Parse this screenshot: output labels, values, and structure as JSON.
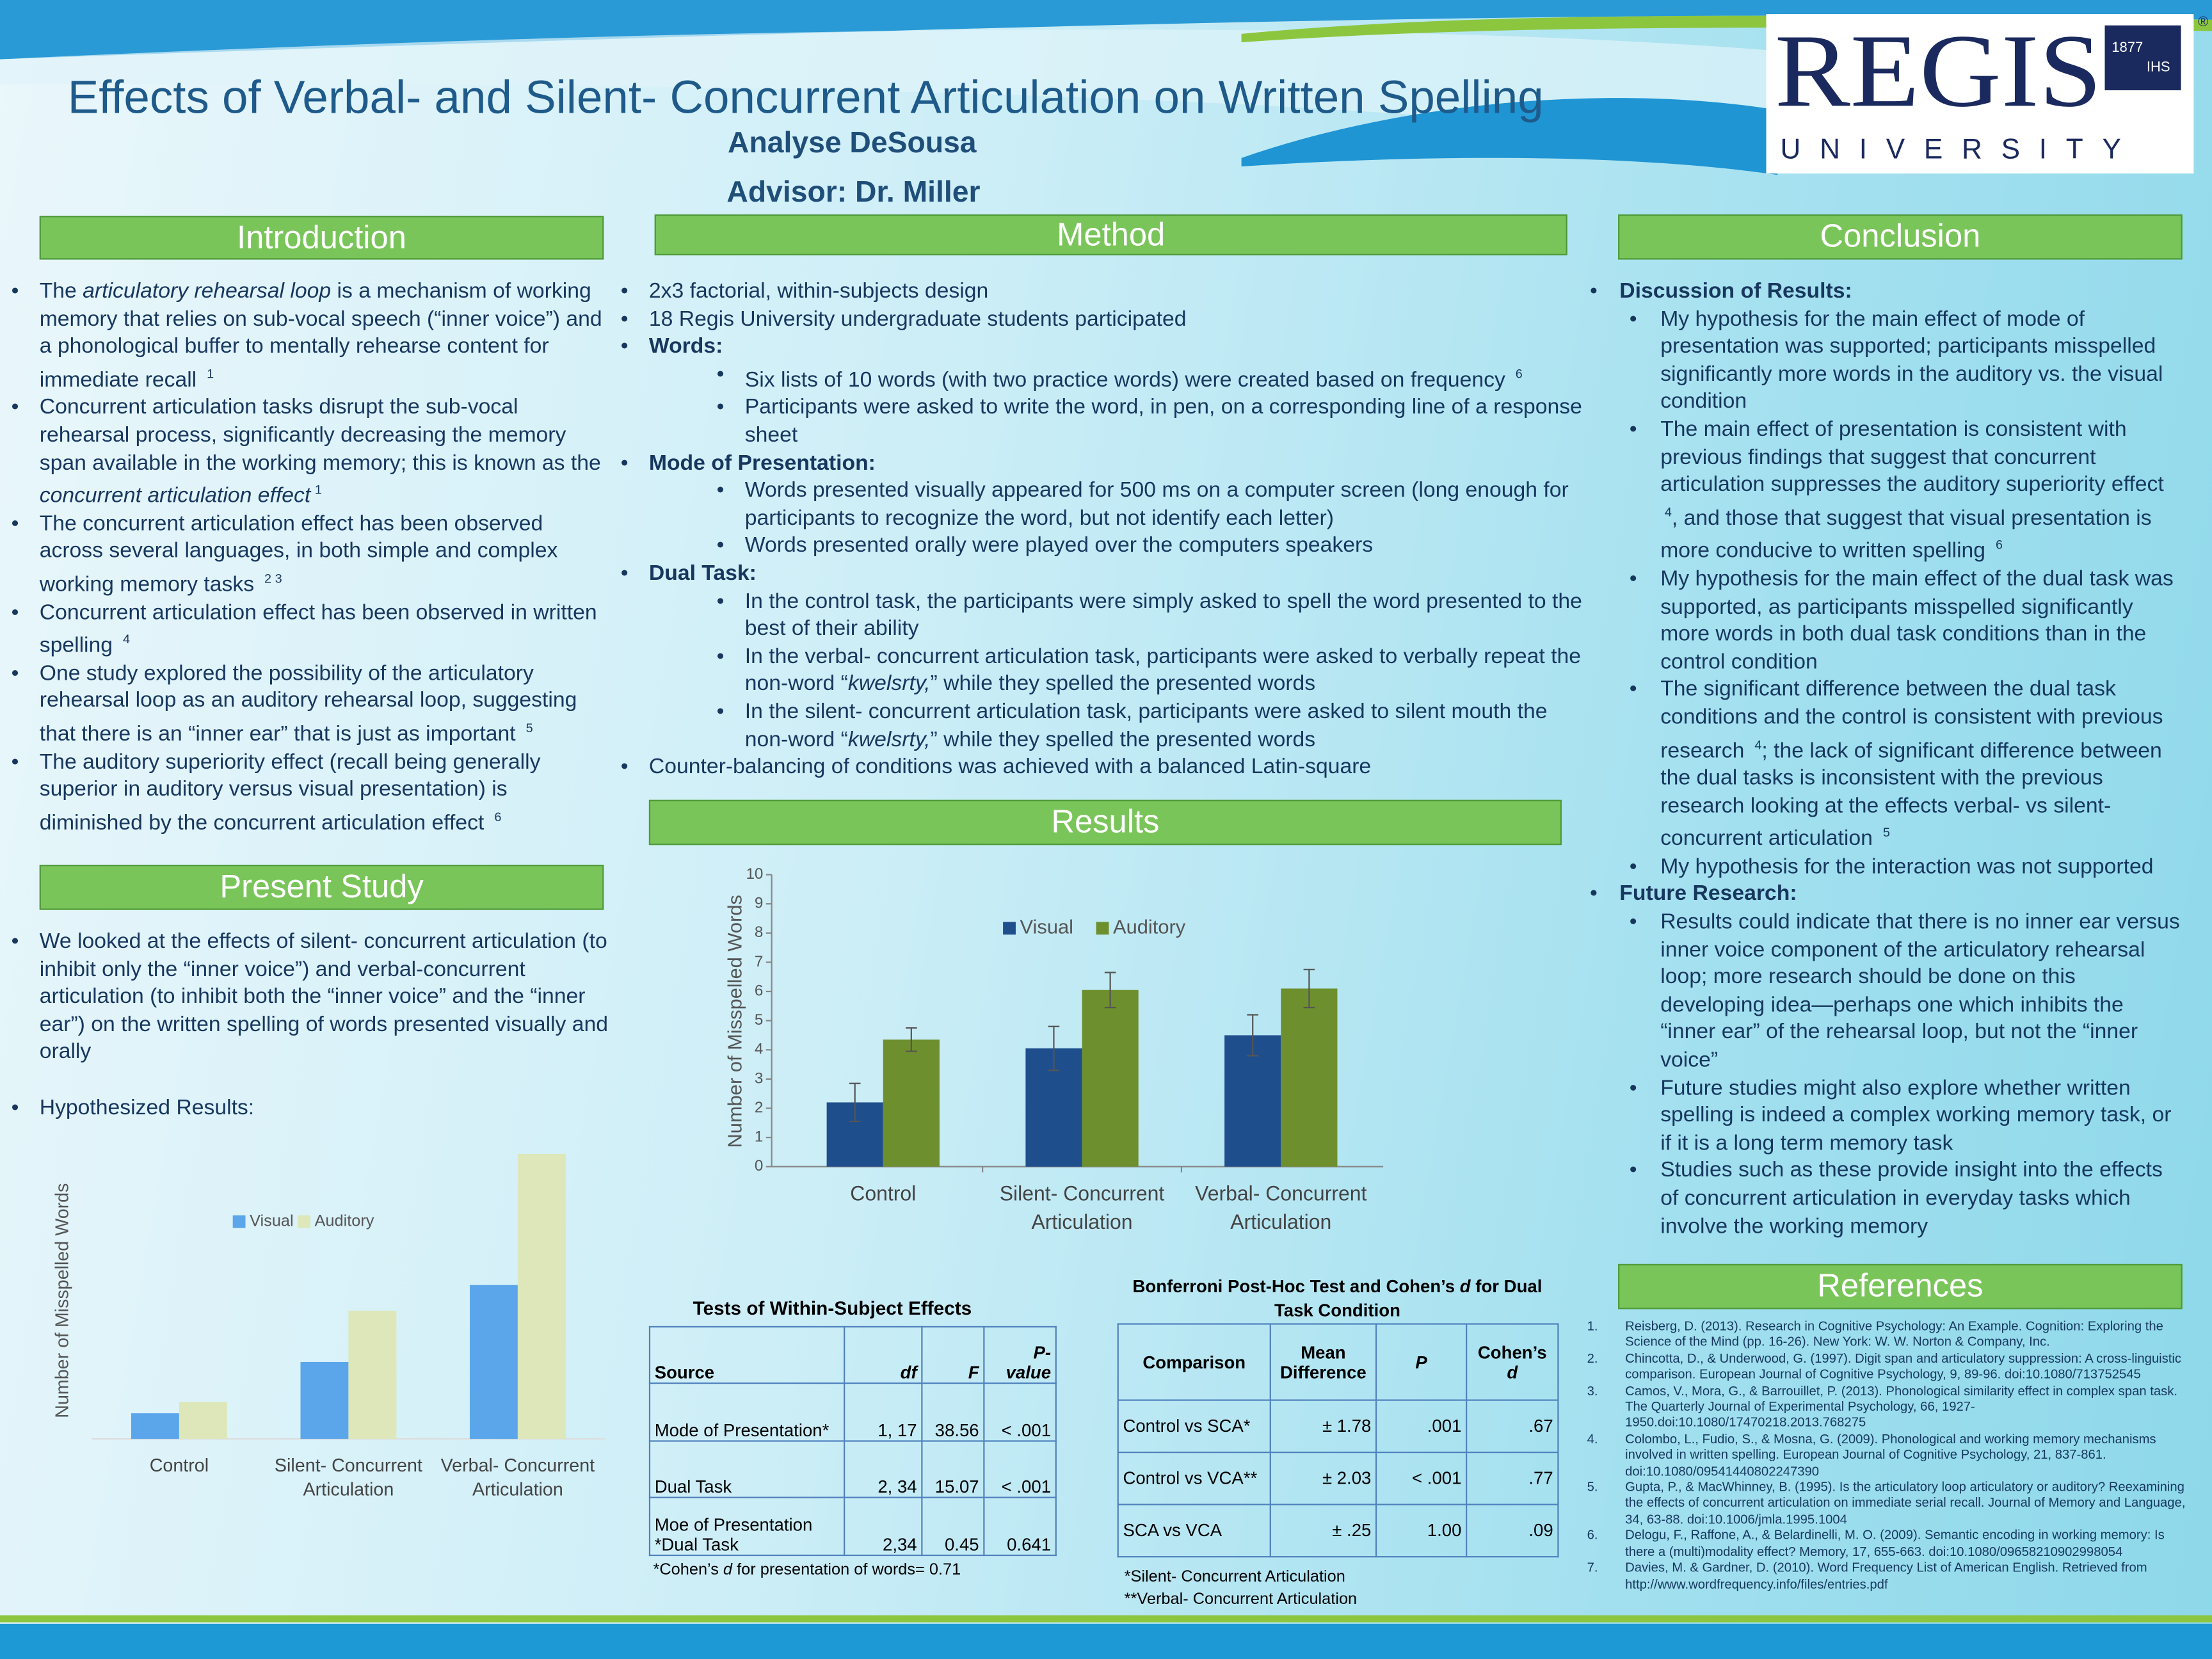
{
  "header": {
    "title": "Effects of Verbal- and Silent- Concurrent Articulation on Written Spelling",
    "author": "Analyse DeSousa",
    "advisor": "Advisor: Dr. Miller"
  },
  "logo": {
    "name": "REGIS",
    "subtitle": "UNIVERSITY",
    "year": "1877",
    "monogram": "IHS",
    "mark": "®"
  },
  "introduction": {
    "heading": "Introduction",
    "items": [
      [
        "The ",
        {
          "i": "articulatory rehearsal loop"
        },
        " is a mechanism of working memory that relies on sub-vocal speech (“inner voice”) and a phonological buffer to mentally rehearse content for immediate recall ",
        {
          "sup": "1"
        }
      ],
      [
        "Concurrent articulation tasks disrupt the sub-vocal rehearsal process, significantly decreasing the memory span available in the working memory; this is known as the ",
        {
          "i": "concurrent articulation effect"
        },
        {
          "sup": "1"
        }
      ],
      [
        "The concurrent articulation effect has been observed across several languages, in both simple and complex working memory tasks ",
        {
          "sup": "2 3"
        }
      ],
      [
        "Concurrent articulation effect has been observed in written spelling ",
        {
          "sup": "4"
        }
      ],
      [
        "One study explored the possibility of the articulatory rehearsal loop as an auditory rehearsal loop, suggesting that there is an “inner ear” that is just as important ",
        {
          "sup": "5"
        }
      ],
      [
        "The auditory superiority effect (recall being generally superior in auditory versus visual presentation) is diminished by the concurrent articulation effect ",
        {
          "sup": "6"
        }
      ]
    ]
  },
  "present_study": {
    "heading": "Present Study",
    "items": [
      "We looked at the effects of silent- concurrent articulation (to inhibit only the “inner voice”) and verbal-concurrent articulation (to inhibit both the “inner voice” and the “inner ear”) on the written spelling of words presented visually and orally",
      "Hypothesized Results:"
    ]
  },
  "method": {
    "heading": "Method",
    "items": [
      "2x3 factorial, within-subjects design",
      "18 Regis University undergraduate students participated",
      {
        "head": "Words:",
        "sub": [
          [
            "Six lists of 10 words (with two practice words) were created based on frequency ",
            {
              "sup": "6"
            }
          ],
          "Participants were asked to write the word, in pen, on a corresponding line of a response sheet"
        ]
      },
      {
        "head": "Mode of Presentation:",
        "sub": [
          "Words presented visually appeared for 500 ms on a computer screen (long enough for participants to recognize the word, but not identify each letter)",
          "Words presented orally were played over the computers speakers"
        ]
      },
      {
        "head": "Dual Task:",
        "sub": [
          "In the control task, the participants were simply asked to spell the word presented to the best of their ability",
          [
            "In the verbal- concurrent articulation task, participants were asked to verbally repeat the non-word “",
            {
              "i": "kwelsrty,"
            },
            "” while they spelled the presented words"
          ],
          [
            "In the silent- concurrent articulation task, participants were asked to silent mouth the non-word “",
            {
              "i": "kwelsrty,"
            },
            "” while they spelled the presented words"
          ]
        ]
      },
      "Counter-balancing of conditions was achieved with a balanced Latin-square"
    ]
  },
  "results": {
    "heading": "Results"
  },
  "conclusion": {
    "heading": "Conclusion",
    "items": [
      {
        "head": "Discussion of Results:",
        "sub": [
          "My hypothesis for the main effect of mode of presentation was supported; participants misspelled significantly more words in the auditory vs. the visual condition",
          [
            "The main effect of presentation is consistent with previous findings that suggest that concurrent articulation suppresses the auditory superiority effect ",
            {
              "sup": "4"
            },
            ", and those that suggest that visual presentation is more conducive to written spelling ",
            {
              "sup": "6"
            }
          ],
          "My hypothesis for the main effect of the dual task was supported, as participants misspelled significantly more words in both dual task conditions than in the control condition",
          [
            "The significant difference between the dual task conditions and the control is consistent with previous research ",
            {
              "sup": "4"
            },
            "; the lack of significant difference between the dual tasks is inconsistent with the previous research looking at the effects verbal- vs silent- concurrent articulation ",
            {
              "sup": "5"
            }
          ],
          "My hypothesis for the interaction was not supported"
        ]
      },
      {
        "head": "Future Research:",
        "sub": [
          "Results could indicate that there is no inner ear versus inner voice component of the articulatory rehearsal loop; more research should be done on this developing idea—perhaps one which inhibits the “inner ear” of the rehearsal loop, but not the “inner voice”",
          "Future studies might also explore whether written spelling is indeed a complex working memory task, or if it is a long term memory task",
          "Studies such as these provide insight into the effects of concurrent articulation in everyday tasks which involve the working memory"
        ]
      }
    ]
  },
  "references": {
    "heading": "References",
    "items": [
      {
        "num": "1.",
        "text": "Reisberg, D. (2013). Research in Cognitive Psychology: An Example. Cognition: Exploring the Science of the Mind (pp. 16-26). New York: W. W. Norton & Company, Inc."
      },
      {
        "num": "2.",
        "text": "Chincotta, D., & Underwood, G. (1997). Digit span and articulatory suppression: A cross-linguistic comparison. European Journal of Cognitive Psychology, 9, 89-96. doi:10.1080/713752545"
      },
      {
        "num": "3.",
        "text": "Camos, V., Mora, G., & Barrouillet, P. (2013). Phonological similarity effect in complex span task. The Quarterly Journal of Experimental Psychology, 66, 1927-1950.doi:10.1080/17470218.2013.768275"
      },
      {
        "num": "4.",
        "text": "Colombo, L., Fudio, S., & Mosna, G. (2009). Phonological and working memory mechanisms involved in written spelling. European Journal of Cognitive Psychology, 21, 837-861. doi:10.1080/09541440802247390"
      },
      {
        "num": "5.",
        "text": "Gupta, P., & MacWhinney, B. (1995). Is the articulatory loop articulatory or auditory? Reexamining the effects of concurrent articulation on immediate serial recall. Journal of Memory and Language, 34, 63-88. doi:10.1006/jmla.1995.1004"
      },
      {
        "num": "6.",
        "text": "Delogu, F., Raffone, A., & Belardinelli, M. O. (2009). Semantic encoding in working memory: Is there a (multi)modality effect? Memory, 17, 655-663. doi:10.1080/09658210902998054"
      },
      {
        "num": "7.",
        "text": "Davies, M. & Gardner, D. (2010). Word Frequency List of American English. Retrieved from http://www.wordfrequency.info/files/entries.pdf"
      }
    ]
  },
  "tables": [
    {
      "title": "Tests of Within-Subject Effects",
      "header": [
        "Source",
        {
          "i": "df"
        },
        {
          "i": "F"
        },
        {
          "i": "P-value"
        }
      ],
      "rows": [
        [
          "Mode of Presentation*",
          "1, 17",
          "38.56",
          "< .001"
        ],
        [
          "Dual Task",
          "2, 34",
          "15.07",
          "< .001"
        ],
        [
          "Moe of Presentation *Dual Task",
          "2,34",
          "0.45",
          "0.641"
        ]
      ],
      "notes": [
        [
          "*Cohen’s ",
          {
            "i": "d"
          },
          " for presentation of words= 0.71"
        ]
      ]
    },
    {
      "title": [
        "Bonferroni Post-Hoc Test and Cohen’s ",
        {
          "i": "d"
        },
        " for Dual Task Condition"
      ],
      "header": [
        "Comparison",
        "Mean Difference",
        {
          "i": "P"
        },
        [
          "Cohen’s ",
          {
            "i": "d"
          }
        ]
      ],
      "rows": [
        [
          "Control vs SCA*",
          "± 1.78",
          ".001",
          ".67"
        ],
        [
          "Control vs VCA**",
          "± 2.03",
          "< .001",
          ".77"
        ],
        [
          "SCA vs VCA",
          "± .25",
          "1.00",
          ".09"
        ]
      ],
      "notes": [
        "*Silent- Concurrent Articulation",
        "**Verbal- Concurrent Articulation"
      ]
    }
  ],
  "chart_data": [
    {
      "type": "bar",
      "ylabel": "Number of Misspelled Words",
      "categories": [
        "Control",
        "Silent- Concurrent Articulation",
        "Verbal- Concurrent Articulation"
      ],
      "series": [
        {
          "name": "Visual",
          "color": "#1f4e8c",
          "values": [
            2.2,
            4.05,
            4.5
          ],
          "errors": [
            0.65,
            0.75,
            0.7
          ]
        },
        {
          "name": "Auditory",
          "color": "#6e8f2e",
          "values": [
            4.35,
            6.05,
            6.1
          ],
          "errors": [
            0.4,
            0.6,
            0.65
          ]
        }
      ],
      "ylim": [
        0,
        10
      ],
      "yticks": [
        0,
        1,
        2,
        3,
        4,
        5,
        6,
        7,
        8,
        9,
        10
      ]
    },
    {
      "type": "bar",
      "ylabel": "Number of Misspelled Words",
      "categories": [
        "Control",
        "Silent- Concurrent Articulation",
        "Verbal- Concurrent Articulation"
      ],
      "series": [
        {
          "name": "Visual",
          "color": "#5ba6ea",
          "values": [
            0.9,
            2.7,
            5.4
          ]
        },
        {
          "name": "Auditory",
          "color": "#dde7ba",
          "values": [
            1.3,
            4.5,
            10
          ]
        }
      ],
      "ylim": [
        0,
        10
      ]
    }
  ]
}
